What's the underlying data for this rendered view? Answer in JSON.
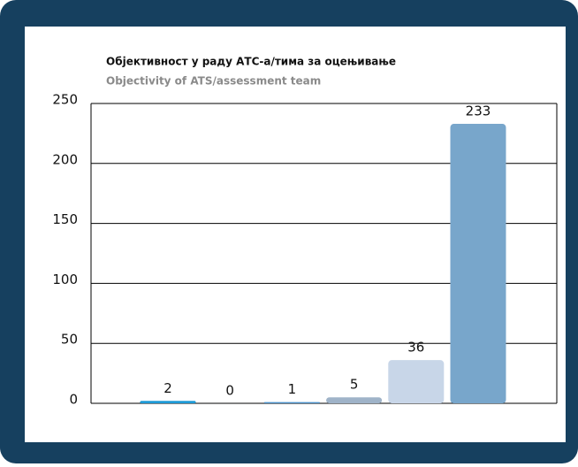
{
  "chart_data": {
    "type": "bar",
    "title": "Објективност у раду АТС-а/тима за оцењивање",
    "subtitle": "Objectivity of ATS/assessment team",
    "values": [
      2,
      0,
      1,
      5,
      36,
      233
    ],
    "colors": [
      "#1e9ad6",
      "#2fa7a0",
      "#4a90c8",
      "#9fb3c8",
      "#c8d6e8",
      "#78a6cb"
    ],
    "ylim": [
      0,
      250
    ],
    "yticks": [
      0,
      50,
      100,
      150,
      200,
      250
    ],
    "grid": true
  }
}
